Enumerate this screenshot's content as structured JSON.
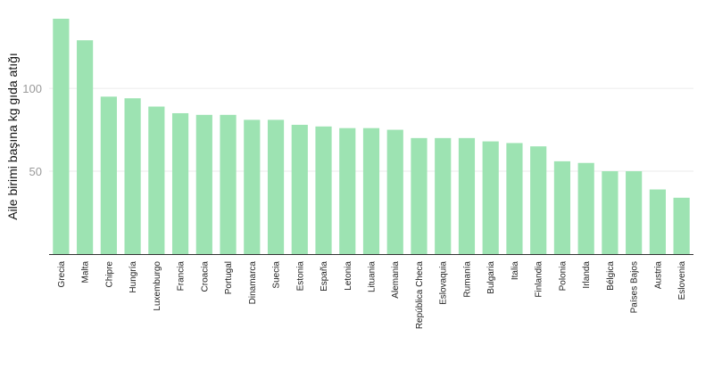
{
  "chart_data": {
    "type": "bar",
    "title": "",
    "xlabel": "",
    "ylabel": "Aile birimi başına kg gıda atığı",
    "categories": [
      "Grecia",
      "Malta",
      "Chipre",
      "Hungría",
      "Luxemburgo",
      "Francia",
      "Croacia",
      "Portugal",
      "Dinamarca",
      "Suecia",
      "Estonia",
      "España",
      "Letonia",
      "Lituania",
      "Alemania",
      "República Checa",
      "Eslovaquia",
      "Rumanía",
      "Bulgaria",
      "Italia",
      "Finlandia",
      "Polonia",
      "Irlanda",
      "Bélgica",
      "Países Bajos",
      "Austria",
      "Eslovenia"
    ],
    "values": [
      142,
      129,
      95,
      94,
      89,
      85,
      84,
      84,
      81,
      81,
      78,
      77,
      76,
      76,
      75,
      70,
      70,
      70,
      68,
      67,
      65,
      56,
      55,
      50,
      50,
      39,
      34
    ],
    "yticks": [
      50,
      100
    ],
    "ylim": [
      0,
      142
    ],
    "grid": true,
    "bar_color": "#9de3b2"
  }
}
